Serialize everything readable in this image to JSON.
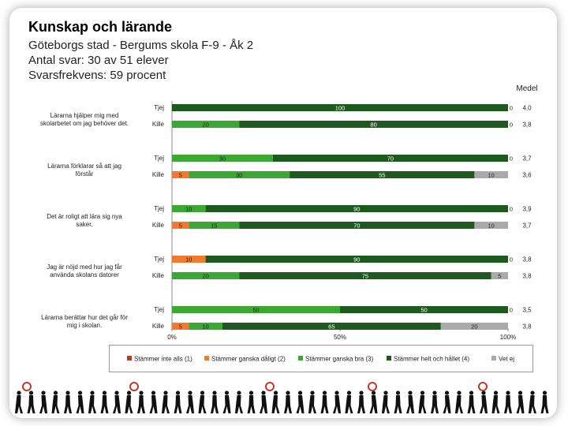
{
  "header": {
    "title": "Kunskap och lärande",
    "school": "Göteborgs stad - Bergums skola F-9 - Åk 2",
    "responses": "Antal svar: 30 av 51 elever",
    "rate": "Svarsfrekvens: 59 procent"
  },
  "chart_data": {
    "type": "bar",
    "orientation": "horizontal-stacked-percent",
    "mean_label": "Medel",
    "xlim": [
      0,
      100
    ],
    "x_ticks": [
      "0%",
      "50%",
      "100%"
    ],
    "categories_legend": [
      "Stämmer inte alls (1)",
      "Stämmer ganska dåligt (2)",
      "Stämmer ganska bra (3)",
      "Stämmer helt och hållet (4)",
      "Vet ej"
    ],
    "colors": [
      "#c0392b",
      "#f07a2e",
      "#3aa832",
      "#1e5a1e",
      "#aaaaaa"
    ],
    "questions": [
      {
        "question": "Lärarna hjälper mig med skolarbetet om jag behöver det.",
        "rows": [
          {
            "group": "Tjej",
            "values": [
              0,
              0,
              0,
              100,
              0
            ],
            "mean": "4,0"
          },
          {
            "group": "Kille",
            "values": [
              0,
              0,
              20,
              80,
              0
            ],
            "mean": "3,8"
          }
        ]
      },
      {
        "question": "Lärarna förklarar så att jag förstår",
        "rows": [
          {
            "group": "Tjej",
            "values": [
              0,
              0,
              30,
              70,
              0
            ],
            "mean": "3,7"
          },
          {
            "group": "Kille",
            "values": [
              0,
              5,
              30,
              55,
              10
            ],
            "mean": "3,6"
          }
        ]
      },
      {
        "question": "Det är roligt att lära sig nya saker.",
        "rows": [
          {
            "group": "Tjej",
            "values": [
              0,
              0,
              10,
              90,
              0
            ],
            "mean": "3,9"
          },
          {
            "group": "Kille",
            "values": [
              0,
              5,
              15,
              70,
              10
            ],
            "mean": "3,7"
          }
        ]
      },
      {
        "question": "Jag är nöjd med hur jag får använda skolans datorer",
        "rows": [
          {
            "group": "Tjej",
            "values": [
              0,
              10,
              0,
              90,
              0
            ],
            "mean": "3,8"
          },
          {
            "group": "Kille",
            "values": [
              0,
              0,
              20,
              75,
              5
            ],
            "mean": "3,8"
          }
        ]
      },
      {
        "question": "Lärarna berättar hur det går för mig i skolan.",
        "rows": [
          {
            "group": "Tjej",
            "values": [
              0,
              0,
              50,
              50,
              0
            ],
            "mean": "3,5"
          },
          {
            "group": "Kille",
            "values": [
              0,
              5,
              10,
              65,
              20
            ],
            "mean": "3,8"
          }
        ]
      }
    ]
  }
}
